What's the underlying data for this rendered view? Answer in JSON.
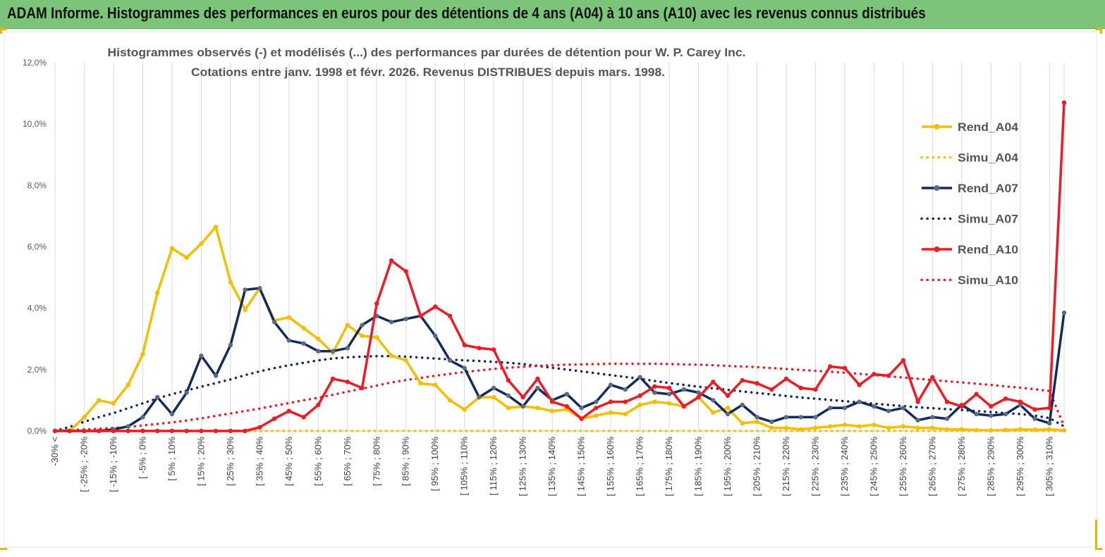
{
  "banner": {
    "title": "ADAM Informe. Histogrammes des performances en euros pour des détentions de 4 ans (A04) à 10 ans (A10) avec les revenus connus distribués"
  },
  "chart_data": {
    "type": "line",
    "title": "Histogrammes observés (-) et modélisés (...) des performances par durées de détention pour W. P. Carey Inc.",
    "subtitle": "Cotations entre janv. 1998 et févr. 2026. Revenus DISTRIBUES depuis mars. 1998.",
    "ylim": [
      0,
      12
    ],
    "yticks": [
      0,
      2,
      4,
      6,
      8,
      10,
      12
    ],
    "ytick_labels": [
      "0,0%",
      "2,0%",
      "4,0%",
      "6,0%",
      "8,0%",
      "10,0%",
      "12,0%"
    ],
    "xtick_labels": [
      "-30% <",
      "[ -25% ; -20%",
      "[ -15% ; -10%",
      "[ -5% ; 0%",
      "[ 5% ; 10%",
      "[ 15% ; 20%",
      "[ 25% ; 30%",
      "[ 35% ; 40%",
      "[ 45% ; 50%",
      "[ 55% ; 60%",
      "[ 65% ; 70%",
      "[ 75% ; 80%",
      "[ 85% ; 90%",
      "[ 95% ; 100%",
      "[ 105% ; 110%",
      "[ 115% ; 120%",
      "[ 125% ; 130%",
      "[ 135% ; 140%",
      "[ 145% ; 150%",
      "[ 155% ; 160%",
      "[ 165% ; 170%",
      "[ 175% ; 180%",
      "[ 185% ; 190%",
      "[ 195% ; 200%",
      "[ 205% ; 210%",
      "[ 215% ; 220%",
      "[ 225% ; 230%",
      "[ 235% ; 240%",
      "[ 245% ; 250%",
      "[ 255% ; 260%",
      "[ 265% ; 270%",
      "[ 275% ; 280%",
      "[ 285% ; 290%",
      "[ 295% ; 300%",
      "[ 305% ; 310%"
    ],
    "n_points": 70,
    "series": [
      {
        "name": "Rend_A04",
        "style": "solid",
        "color": "#f7be00",
        "values": [
          0,
          0,
          0.45,
          1.0,
          0.9,
          1.5,
          2.5,
          4.5,
          5.95,
          5.65,
          6.1,
          6.65,
          4.85,
          3.95,
          4.65,
          3.6,
          3.7,
          3.35,
          3.0,
          2.55,
          3.45,
          3.1,
          3.05,
          2.45,
          2.3,
          1.55,
          1.5,
          1.0,
          0.7,
          1.1,
          1.1,
          0.75,
          0.8,
          0.75,
          0.65,
          0.7,
          0.4,
          0.5,
          0.6,
          0.55,
          0.85,
          0.95,
          0.9,
          0.8,
          1.1,
          0.6,
          0.75,
          0.25,
          0.3,
          0.1,
          0.1,
          0.05,
          0.1,
          0.15,
          0.2,
          0.15,
          0.2,
          0.1,
          0.15,
          0.1,
          0.1,
          0.05,
          0.05,
          0.03,
          0.02,
          0.03,
          0.05,
          0.04,
          0.05,
          0.02
        ]
      },
      {
        "name": "Simu_A04",
        "style": "dotted",
        "color": "#f7be00",
        "values": [
          0,
          0,
          0,
          0,
          0,
          0,
          0,
          0,
          0,
          0,
          0,
          0,
          0,
          0,
          0,
          0,
          0,
          0,
          0,
          0,
          0,
          0,
          0,
          0,
          0,
          0,
          0,
          0,
          0,
          0,
          0,
          0,
          0,
          0,
          0,
          0,
          0,
          0,
          0,
          0,
          0,
          0,
          0,
          0,
          0,
          0,
          0,
          0,
          0,
          0,
          0,
          0,
          0,
          0,
          0,
          0,
          0,
          0,
          0,
          0,
          0,
          0,
          0,
          0,
          0,
          0,
          0,
          0,
          0,
          0
        ]
      },
      {
        "name": "Rend_A07",
        "style": "solid",
        "color": "#132a5e",
        "values": [
          0,
          0,
          0,
          0,
          0.05,
          0.15,
          0.45,
          1.1,
          0.55,
          1.25,
          2.45,
          1.8,
          2.8,
          4.6,
          4.65,
          3.55,
          2.95,
          2.85,
          2.6,
          2.6,
          2.7,
          3.45,
          3.75,
          3.55,
          3.65,
          3.75,
          3.1,
          2.3,
          2.05,
          1.1,
          1.4,
          1.15,
          0.8,
          1.4,
          1.0,
          1.2,
          0.75,
          0.95,
          1.5,
          1.35,
          1.75,
          1.25,
          1.2,
          1.35,
          1.25,
          1.0,
          0.55,
          0.85,
          0.45,
          0.3,
          0.45,
          0.45,
          0.45,
          0.75,
          0.75,
          0.95,
          0.8,
          0.65,
          0.75,
          0.35,
          0.45,
          0.4,
          0.85,
          0.55,
          0.5,
          0.55,
          0.85,
          0.4,
          0.25,
          3.85
        ]
      },
      {
        "name": "Simu_A07",
        "style": "dotted",
        "color": "#132a5e",
        "values": [
          0.01,
          0.13,
          0.3,
          0.45,
          0.58,
          0.74,
          0.9,
          1.06,
          1.2,
          1.32,
          1.44,
          1.56,
          1.68,
          1.82,
          1.94,
          2.05,
          2.14,
          2.22,
          2.3,
          2.36,
          2.4,
          2.42,
          2.44,
          2.44,
          2.42,
          2.39,
          2.36,
          2.33,
          2.3,
          2.28,
          2.25,
          2.22,
          2.18,
          2.12,
          2.06,
          2.0,
          1.94,
          1.88,
          1.82,
          1.76,
          1.7,
          1.63,
          1.56,
          1.5,
          1.44,
          1.39,
          1.34,
          1.29,
          1.24,
          1.19,
          1.14,
          1.09,
          1.05,
          1.01,
          0.97,
          0.93,
          0.89,
          0.85,
          0.81,
          0.77,
          0.74,
          0.71,
          0.68,
          0.65,
          0.62,
          0.58,
          0.55,
          0.5,
          0.42,
          0.15
        ]
      },
      {
        "name": "Rend_A10",
        "style": "solid",
        "color": "#ee1b24",
        "values": [
          0,
          0,
          0,
          0,
          0,
          0,
          0,
          0,
          0,
          0,
          0,
          0,
          0,
          0,
          0.12,
          0.4,
          0.65,
          0.45,
          0.85,
          1.7,
          1.6,
          1.4,
          4.15,
          5.55,
          5.2,
          3.75,
          4.05,
          3.75,
          2.8,
          2.7,
          2.65,
          1.65,
          1.1,
          1.7,
          0.95,
          0.8,
          0.4,
          0.75,
          0.95,
          0.95,
          1.15,
          1.45,
          1.4,
          0.8,
          1.1,
          1.6,
          1.15,
          1.65,
          1.55,
          1.35,
          1.7,
          1.4,
          1.35,
          2.1,
          2.05,
          1.5,
          1.85,
          1.8,
          2.3,
          0.95,
          1.75,
          0.95,
          0.8,
          1.2,
          0.8,
          1.05,
          0.95,
          0.7,
          0.75,
          10.7
        ]
      },
      {
        "name": "Simu_A10",
        "style": "dotted",
        "color": "#ee1b24",
        "values": [
          0.01,
          0.03,
          0.05,
          0.07,
          0.1,
          0.13,
          0.18,
          0.23,
          0.28,
          0.34,
          0.41,
          0.49,
          0.57,
          0.65,
          0.73,
          0.82,
          0.91,
          1.0,
          1.08,
          1.18,
          1.28,
          1.38,
          1.48,
          1.58,
          1.66,
          1.73,
          1.8,
          1.86,
          1.92,
          1.97,
          2.02,
          2.06,
          2.09,
          2.12,
          2.14,
          2.16,
          2.17,
          2.18,
          2.19,
          2.19,
          2.19,
          2.19,
          2.18,
          2.17,
          2.16,
          2.14,
          2.12,
          2.1,
          2.08,
          2.05,
          2.02,
          1.99,
          1.96,
          1.93,
          1.9,
          1.86,
          1.82,
          1.78,
          1.74,
          1.7,
          1.66,
          1.62,
          1.58,
          1.54,
          1.5,
          1.45,
          1.41,
          1.36,
          1.3,
          0.15
        ]
      }
    ],
    "legend": [
      "Rend_A04",
      "Simu_A04",
      "Rend_A07",
      "Simu_A07",
      "Rend_A10",
      "Simu_A10"
    ],
    "legend_position": "right"
  }
}
